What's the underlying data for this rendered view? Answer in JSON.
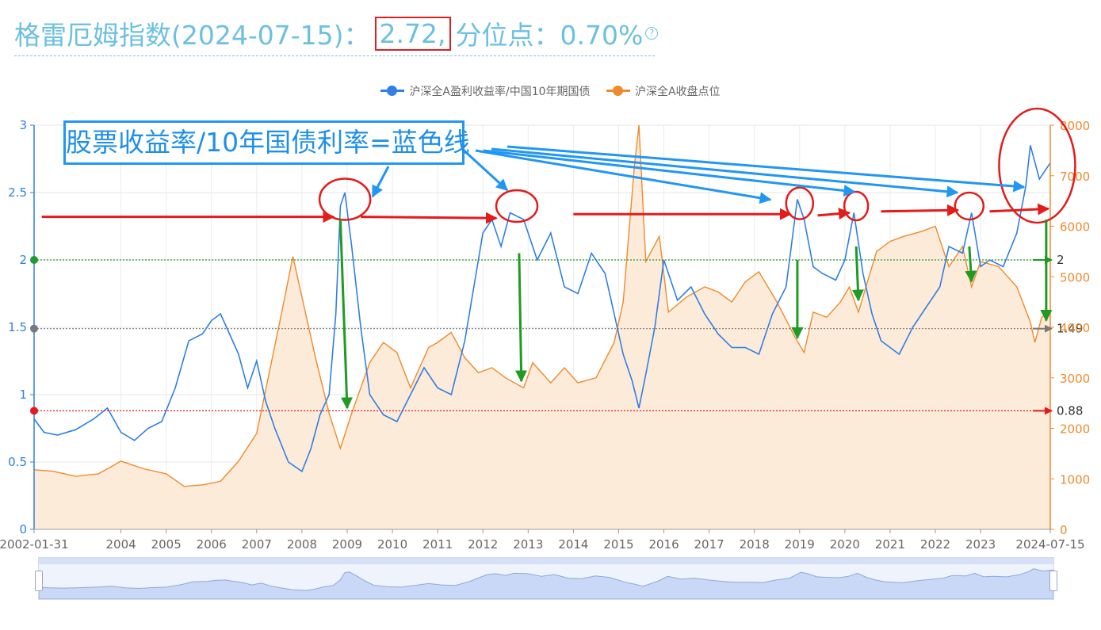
{
  "header": {
    "title_prefix": "格雷厄姆指数(2024-07-15)：",
    "index_value": "2.72,",
    "percentile_label": "分位点：0.70%",
    "help_icon": "question-circle-icon"
  },
  "chart_data": {
    "type": "line",
    "title": "格雷厄姆指数(2024-07-15)： 2.72, 分位点：0.70%",
    "legend": [
      "沪深全A盈利收益率/中国10年期国债",
      "沪深全A收盘点位"
    ],
    "legend_position": "top-center",
    "colors": {
      "blue": "#2f7fe6",
      "orange": "#ef8a2b",
      "area_fill": "#fdebd9",
      "red": "#e31b1b",
      "green": "#1f9a23",
      "gray": "#7a7a7a"
    },
    "x_ticks": [
      "2002-01-31",
      "2004",
      "2005",
      "2006",
      "2007",
      "2008",
      "2009",
      "2010",
      "2011",
      "2012",
      "2013",
      "2014",
      "2015",
      "2016",
      "2017",
      "2018",
      "2019",
      "2020",
      "2021",
      "2022",
      "2023",
      "2024-07-15"
    ],
    "x_range": [
      2002.08,
      2024.54
    ],
    "y_left_ticks": [
      "0",
      "0.5",
      "1",
      "1.5",
      "2",
      "2.5",
      "3"
    ],
    "y_left_range": [
      0,
      3
    ],
    "y_right_ticks": [
      "0",
      "1000",
      "2000",
      "3000",
      "4000",
      "5000",
      "6000",
      "7000",
      "8000"
    ],
    "y_right_range": [
      0,
      8000
    ],
    "grid": true,
    "reference_lines": [
      {
        "value": 2,
        "label": "2",
        "color": "#1f9a23"
      },
      {
        "value": 1.49,
        "label": "1.49",
        "color": "#7a7a7a"
      },
      {
        "value": 0.88,
        "label": "0.88",
        "color": "#e31b1b"
      }
    ],
    "series": [
      {
        "name": "沪深全A盈利收益率/中国10年期国债",
        "axis": "left",
        "points": [
          [
            2002.08,
            0.82
          ],
          [
            2002.3,
            0.72
          ],
          [
            2002.6,
            0.7
          ],
          [
            2003.0,
            0.74
          ],
          [
            2003.4,
            0.82
          ],
          [
            2003.7,
            0.9
          ],
          [
            2004.0,
            0.72
          ],
          [
            2004.3,
            0.66
          ],
          [
            2004.6,
            0.75
          ],
          [
            2004.9,
            0.8
          ],
          [
            2005.2,
            1.05
          ],
          [
            2005.5,
            1.4
          ],
          [
            2005.8,
            1.45
          ],
          [
            2006.0,
            1.55
          ],
          [
            2006.2,
            1.6
          ],
          [
            2006.4,
            1.45
          ],
          [
            2006.6,
            1.3
          ],
          [
            2006.8,
            1.05
          ],
          [
            2007.0,
            1.25
          ],
          [
            2007.2,
            0.95
          ],
          [
            2007.4,
            0.75
          ],
          [
            2007.7,
            0.5
          ],
          [
            2008.0,
            0.43
          ],
          [
            2008.2,
            0.6
          ],
          [
            2008.4,
            0.85
          ],
          [
            2008.6,
            1.0
          ],
          [
            2008.75,
            1.6
          ],
          [
            2008.85,
            2.4
          ],
          [
            2008.95,
            2.5
          ],
          [
            2009.1,
            2.1
          ],
          [
            2009.3,
            1.5
          ],
          [
            2009.5,
            1.0
          ],
          [
            2009.8,
            0.85
          ],
          [
            2010.1,
            0.8
          ],
          [
            2010.4,
            1.0
          ],
          [
            2010.7,
            1.2
          ],
          [
            2011.0,
            1.05
          ],
          [
            2011.3,
            1.0
          ],
          [
            2011.6,
            1.4
          ],
          [
            2011.8,
            1.8
          ],
          [
            2012.0,
            2.2
          ],
          [
            2012.2,
            2.3
          ],
          [
            2012.4,
            2.1
          ],
          [
            2012.6,
            2.35
          ],
          [
            2012.9,
            2.3
          ],
          [
            2013.2,
            2.0
          ],
          [
            2013.5,
            2.2
          ],
          [
            2013.8,
            1.8
          ],
          [
            2014.1,
            1.75
          ],
          [
            2014.4,
            2.05
          ],
          [
            2014.7,
            1.9
          ],
          [
            2014.9,
            1.6
          ],
          [
            2015.1,
            1.3
          ],
          [
            2015.3,
            1.1
          ],
          [
            2015.45,
            0.9
          ],
          [
            2015.6,
            1.15
          ],
          [
            2015.8,
            1.5
          ],
          [
            2016.0,
            2.0
          ],
          [
            2016.3,
            1.7
          ],
          [
            2016.6,
            1.8
          ],
          [
            2016.9,
            1.6
          ],
          [
            2017.2,
            1.45
          ],
          [
            2017.5,
            1.35
          ],
          [
            2017.8,
            1.35
          ],
          [
            2018.1,
            1.3
          ],
          [
            2018.4,
            1.6
          ],
          [
            2018.7,
            1.8
          ],
          [
            2018.95,
            2.45
          ],
          [
            2019.1,
            2.3
          ],
          [
            2019.3,
            1.95
          ],
          [
            2019.5,
            1.9
          ],
          [
            2019.8,
            1.85
          ],
          [
            2020.0,
            2.0
          ],
          [
            2020.2,
            2.35
          ],
          [
            2020.4,
            1.9
          ],
          [
            2020.6,
            1.6
          ],
          [
            2020.8,
            1.4
          ],
          [
            2021.0,
            1.35
          ],
          [
            2021.2,
            1.3
          ],
          [
            2021.5,
            1.5
          ],
          [
            2021.8,
            1.65
          ],
          [
            2022.1,
            1.8
          ],
          [
            2022.3,
            2.1
          ],
          [
            2022.6,
            2.05
          ],
          [
            2022.8,
            2.35
          ],
          [
            2023.0,
            1.95
          ],
          [
            2023.2,
            2.0
          ],
          [
            2023.5,
            1.95
          ],
          [
            2023.8,
            2.2
          ],
          [
            2024.0,
            2.55
          ],
          [
            2024.1,
            2.85
          ],
          [
            2024.3,
            2.6
          ],
          [
            2024.54,
            2.72
          ]
        ]
      },
      {
        "name": "沪深全A收盘点位",
        "axis": "right",
        "points": [
          [
            2002.08,
            1180
          ],
          [
            2002.5,
            1150
          ],
          [
            2003.0,
            1050
          ],
          [
            2003.5,
            1100
          ],
          [
            2004.0,
            1350
          ],
          [
            2004.5,
            1200
          ],
          [
            2005.0,
            1100
          ],
          [
            2005.4,
            850
          ],
          [
            2005.8,
            880
          ],
          [
            2006.2,
            950
          ],
          [
            2006.6,
            1350
          ],
          [
            2007.0,
            1900
          ],
          [
            2007.3,
            3200
          ],
          [
            2007.6,
            4500
          ],
          [
            2007.8,
            5400
          ],
          [
            2008.0,
            4600
          ],
          [
            2008.3,
            3400
          ],
          [
            2008.6,
            2300
          ],
          [
            2008.85,
            1600
          ],
          [
            2009.1,
            2300
          ],
          [
            2009.5,
            3300
          ],
          [
            2009.8,
            3700
          ],
          [
            2010.1,
            3500
          ],
          [
            2010.4,
            2800
          ],
          [
            2010.8,
            3600
          ],
          [
            2011.0,
            3700
          ],
          [
            2011.3,
            3900
          ],
          [
            2011.6,
            3400
          ],
          [
            2011.9,
            3100
          ],
          [
            2012.2,
            3200
          ],
          [
            2012.5,
            3000
          ],
          [
            2012.9,
            2800
          ],
          [
            2013.1,
            3300
          ],
          [
            2013.5,
            2900
          ],
          [
            2013.8,
            3200
          ],
          [
            2014.1,
            2900
          ],
          [
            2014.5,
            3000
          ],
          [
            2014.9,
            3700
          ],
          [
            2015.1,
            4500
          ],
          [
            2015.35,
            7200
          ],
          [
            2015.45,
            8000
          ],
          [
            2015.6,
            5300
          ],
          [
            2015.9,
            5800
          ],
          [
            2016.1,
            4300
          ],
          [
            2016.5,
            4600
          ],
          [
            2016.9,
            4800
          ],
          [
            2017.2,
            4700
          ],
          [
            2017.5,
            4500
          ],
          [
            2017.8,
            4900
          ],
          [
            2018.1,
            5100
          ],
          [
            2018.5,
            4500
          ],
          [
            2018.9,
            3800
          ],
          [
            2019.1,
            3500
          ],
          [
            2019.3,
            4300
          ],
          [
            2019.6,
            4200
          ],
          [
            2019.9,
            4500
          ],
          [
            2020.1,
            4800
          ],
          [
            2020.3,
            4300
          ],
          [
            2020.5,
            4900
          ],
          [
            2020.7,
            5500
          ],
          [
            2021.0,
            5700
          ],
          [
            2021.3,
            5800
          ],
          [
            2021.7,
            5900
          ],
          [
            2022.0,
            6000
          ],
          [
            2022.3,
            5200
          ],
          [
            2022.6,
            5600
          ],
          [
            2022.8,
            4800
          ],
          [
            2023.0,
            5300
          ],
          [
            2023.4,
            5200
          ],
          [
            2023.8,
            4800
          ],
          [
            2024.1,
            4100
          ],
          [
            2024.2,
            3700
          ],
          [
            2024.35,
            4200
          ],
          [
            2024.54,
            4300
          ]
        ]
      }
    ]
  },
  "annotation": {
    "text": "股票收益率/10年国债利率=蓝色线"
  }
}
